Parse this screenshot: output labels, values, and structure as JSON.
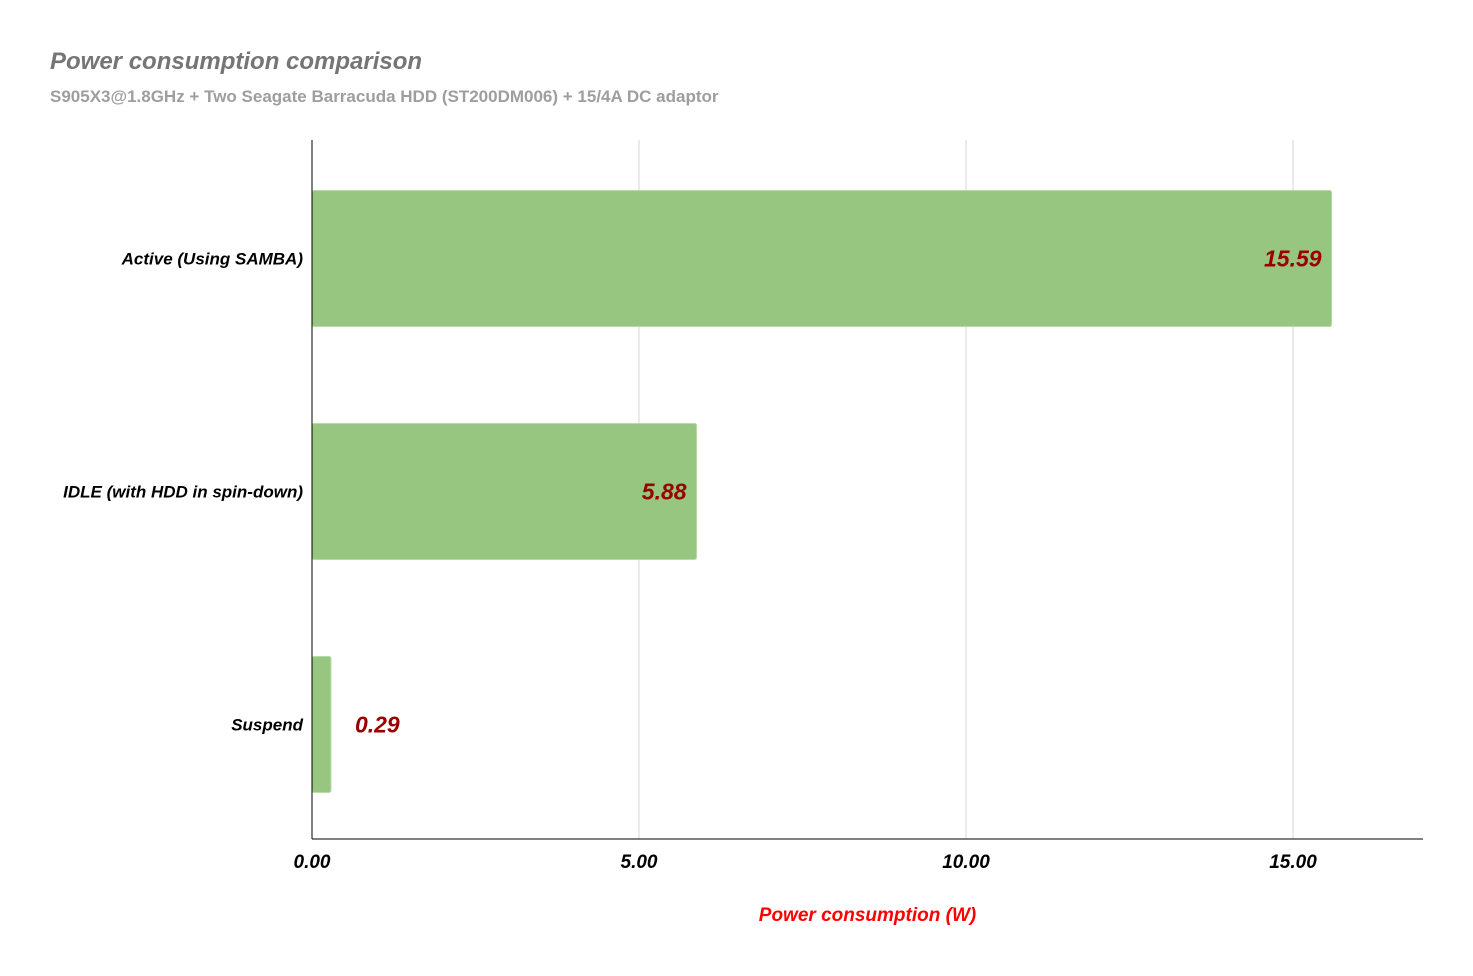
{
  "chart_data": {
    "type": "bar",
    "orientation": "horizontal",
    "title": "Power consumption comparison",
    "subtitle": "S905X3@1.8GHz + Two Seagate Barracuda HDD (ST200DM006) + 15/4A DC adaptor",
    "categories": [
      "Active (Using SAMBA)",
      "IDLE (with HDD in spin-down)",
      "Suspend"
    ],
    "values": [
      15.59,
      5.88,
      0.29
    ],
    "value_labels": [
      "15.59",
      "5.88",
      "0.29"
    ],
    "xlabel": "Power consumption (W)",
    "ylabel": "",
    "xlim": [
      0,
      17
    ],
    "xticks": [
      0,
      5,
      10,
      15
    ],
    "xtick_labels": [
      "0.00",
      "5.00",
      "10.00",
      "15.00"
    ],
    "grid": true,
    "legend": "none"
  },
  "colors": {
    "bar": "#97c680",
    "bar_stroke": "#b9dba7",
    "data_label": "#990000",
    "axis_title": "#ff0000",
    "grid": "#d6d6d6",
    "axis": "#000000"
  }
}
